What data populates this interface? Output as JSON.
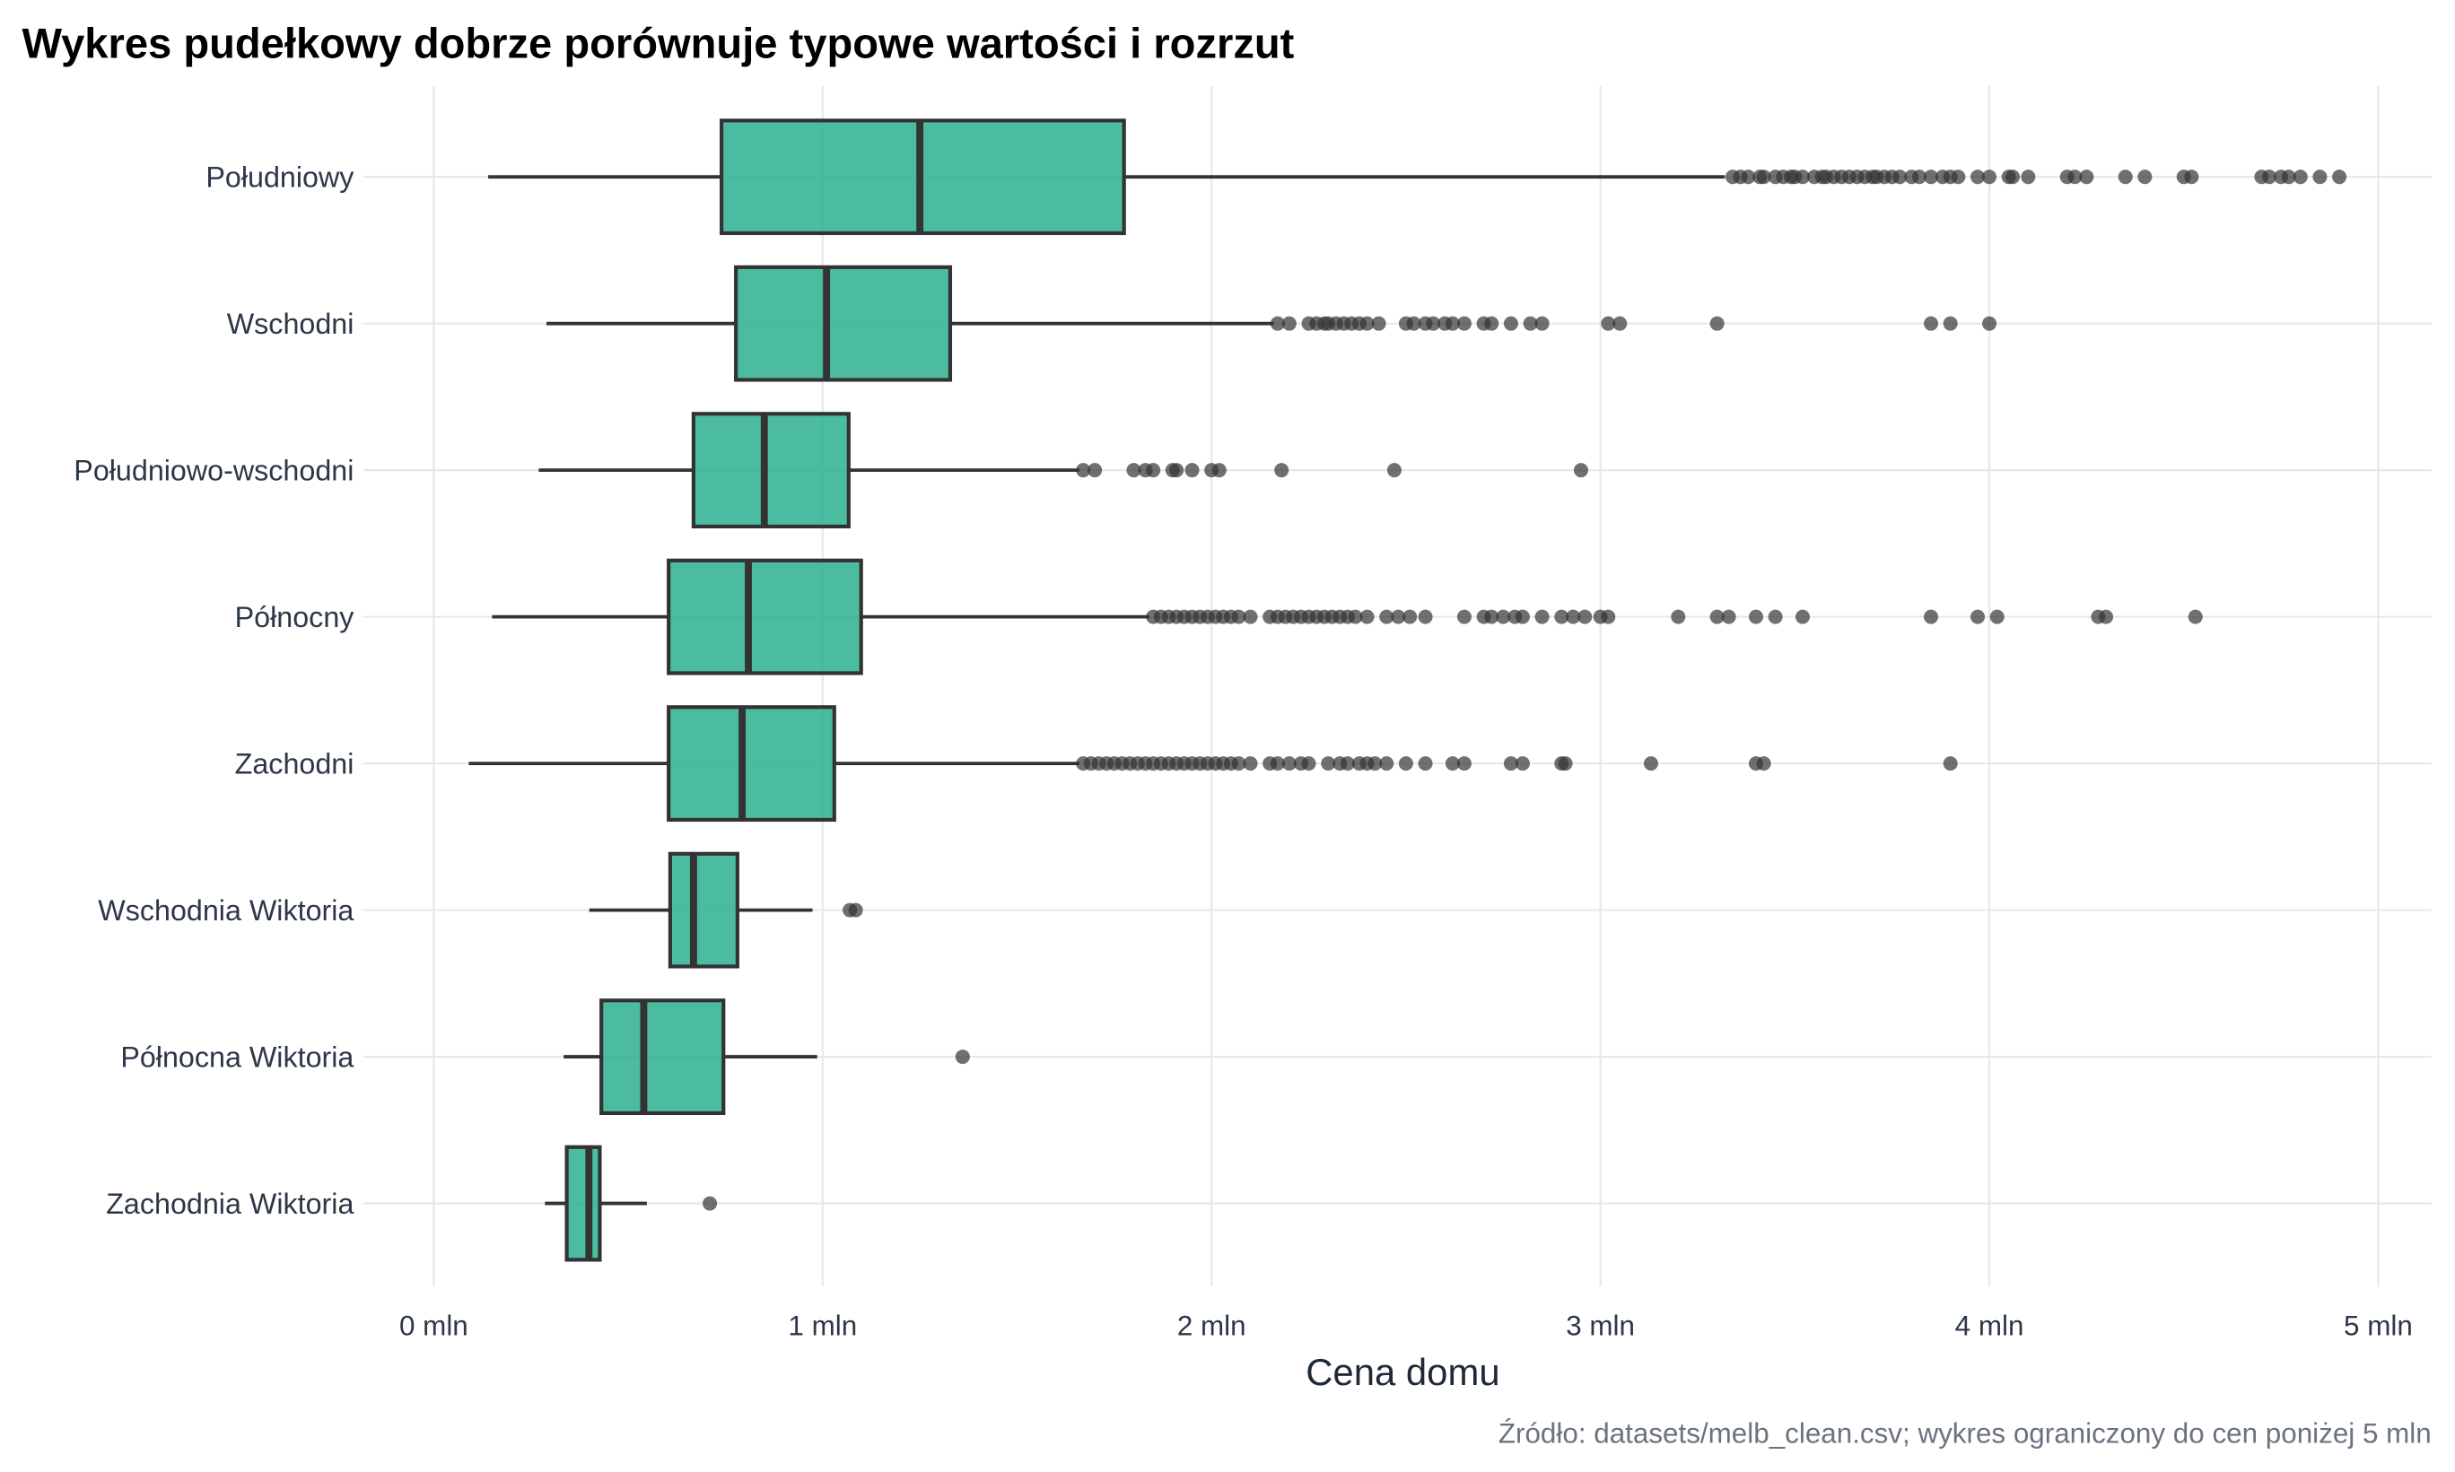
{
  "chart_data": {
    "type": "boxplot",
    "orientation": "horizontal",
    "title": "Wykres pudełkowy dobrze porównuje typowe wartości i rozrzut",
    "xlabel": "Cena domu",
    "ylabel": "",
    "caption": "Źródło: datasets/melb_clean.csv; wykres ograniczony do cen poniżej 5 mln",
    "xlim": [
      0,
      5
    ],
    "x_unit": "mln",
    "x_ticks": [
      0,
      1,
      2,
      3,
      4,
      5
    ],
    "x_tick_labels": [
      "0 mln",
      "1 mln",
      "2 mln",
      "3 mln",
      "4 mln",
      "5 mln"
    ],
    "grid": true,
    "colors": {
      "box_fill": "#1FAB89",
      "box_stroke": "#333333",
      "outlier": "#333333",
      "grid": "#e5e7eb"
    },
    "categories": [
      "Południowy",
      "Wschodni",
      "Południowo-wschodni",
      "Północny",
      "Zachodni",
      "Wschodnia Wiktoria",
      "Północna Wiktoria",
      "Zachodnia Wiktoria"
    ],
    "boxes": [
      {
        "whisker_low": 0.14,
        "q1": 0.74,
        "median": 1.25,
        "q3": 1.775,
        "whisker_high": 3.32,
        "outliers": [
          3.34,
          3.36,
          3.38,
          3.41,
          3.42,
          3.45,
          3.47,
          3.49,
          3.5,
          3.52,
          3.55,
          3.57,
          3.58,
          3.6,
          3.62,
          3.64,
          3.66,
          3.68,
          3.7,
          3.71,
          3.73,
          3.75,
          3.77,
          3.8,
          3.82,
          3.85,
          3.88,
          3.9,
          3.92,
          3.97,
          4.0,
          4.05,
          4.06,
          4.1,
          4.2,
          4.22,
          4.25,
          4.35,
          4.4,
          4.5,
          4.52,
          4.7,
          4.72,
          4.75,
          4.77,
          4.8,
          4.85,
          4.9
        ]
      },
      {
        "whisker_low": 0.29,
        "q1": 0.777,
        "median": 1.01,
        "q3": 1.328,
        "whisker_high": 2.16,
        "outliers": [
          2.17,
          2.2,
          2.25,
          2.27,
          2.29,
          2.3,
          2.32,
          2.34,
          2.36,
          2.38,
          2.4,
          2.43,
          2.5,
          2.52,
          2.55,
          2.57,
          2.6,
          2.62,
          2.65,
          2.7,
          2.72,
          2.77,
          2.82,
          2.85,
          3.02,
          3.05,
          3.3,
          3.85,
          3.9,
          4.0
        ]
      },
      {
        "whisker_low": 0.27,
        "q1": 0.668,
        "median": 0.85,
        "q3": 1.067,
        "whisker_high": 1.66,
        "outliers": [
          1.67,
          1.7,
          1.8,
          1.83,
          1.85,
          1.9,
          1.91,
          1.95,
          2.0,
          2.02,
          2.18,
          2.47,
          2.95
        ]
      },
      {
        "whisker_low": 0.15,
        "q1": 0.604,
        "median": 0.809,
        "q3": 1.099,
        "whisker_high": 1.84,
        "outliers": [
          1.85,
          1.87,
          1.89,
          1.91,
          1.93,
          1.95,
          1.97,
          1.99,
          2.01,
          2.03,
          2.05,
          2.07,
          2.1,
          2.15,
          2.17,
          2.19,
          2.21,
          2.23,
          2.25,
          2.27,
          2.29,
          2.31,
          2.33,
          2.35,
          2.37,
          2.4,
          2.45,
          2.48,
          2.51,
          2.55,
          2.65,
          2.7,
          2.72,
          2.75,
          2.78,
          2.8,
          2.85,
          2.9,
          2.93,
          2.96,
          3.0,
          3.02,
          3.2,
          3.3,
          3.33,
          3.4,
          3.45,
          3.52,
          3.85,
          3.97,
          4.02,
          4.28,
          4.3,
          4.53
        ]
      },
      {
        "whisker_low": 0.09,
        "q1": 0.604,
        "median": 0.793,
        "q3": 1.03,
        "whisker_high": 1.66,
        "outliers": [
          1.67,
          1.69,
          1.71,
          1.73,
          1.75,
          1.77,
          1.79,
          1.81,
          1.83,
          1.85,
          1.87,
          1.89,
          1.91,
          1.93,
          1.95,
          1.97,
          1.99,
          2.01,
          2.03,
          2.05,
          2.07,
          2.1,
          2.15,
          2.17,
          2.2,
          2.23,
          2.25,
          2.3,
          2.33,
          2.35,
          2.38,
          2.4,
          2.42,
          2.45,
          2.5,
          2.55,
          2.62,
          2.65,
          2.77,
          2.8,
          2.9,
          2.91,
          3.13,
          3.4,
          3.42,
          3.9
        ]
      },
      {
        "whisker_low": 0.4,
        "q1": 0.608,
        "median": 0.668,
        "q3": 0.781,
        "whisker_high": 0.974,
        "outliers": [
          1.07,
          1.085
        ]
      },
      {
        "whisker_low": 0.334,
        "q1": 0.431,
        "median": 0.54,
        "q3": 0.745,
        "whisker_high": 0.986,
        "outliers": [
          1.36
        ]
      },
      {
        "whisker_low": 0.286,
        "q1": 0.342,
        "median": 0.399,
        "q3": 0.427,
        "whisker_high": 0.548,
        "outliers": [
          0.71
        ]
      }
    ]
  }
}
